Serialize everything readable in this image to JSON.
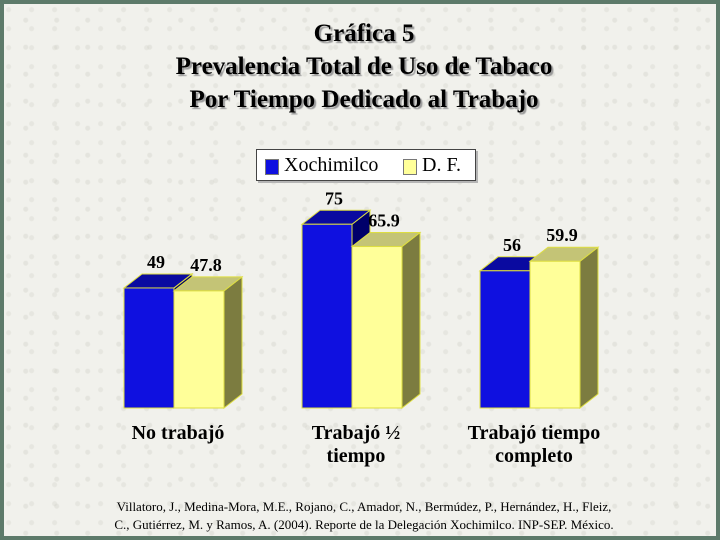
{
  "chart_data": {
    "type": "bar",
    "title": [
      "Gráfica 5",
      "Prevalencia Total de Uso de Tabaco",
      "Por Tiempo Dedicado al Trabajo"
    ],
    "categories": [
      [
        "No trabajó"
      ],
      [
        "Trabajó ½",
        "tiempo"
      ],
      [
        "Trabajó tiempo",
        "completo"
      ]
    ],
    "series": [
      {
        "name": "Xochimilco",
        "values": [
          49,
          75,
          56
        ],
        "labels": [
          "49",
          "75",
          "56"
        ],
        "color": "#0f10e0"
      },
      {
        "name": "D. F.",
        "values": [
          47.8,
          65.9,
          59.9
        ],
        "labels": [
          "47.8",
          "65.9",
          "59.9"
        ],
        "color": "#ffff99"
      }
    ],
    "ylim": [
      0,
      100
    ],
    "grid": false,
    "legend_position": "top-center"
  },
  "source": {
    "line1": "Villatoro, J., Medina-Mora, M.E., Rojano, C., Amador, N., Bermúdez, P., Hernández, H., Fleiz,",
    "line2": "C., Gutiérrez, M. y Ramos, A. (2004). Reporte de la Delegación Xochimilco. INP-SEP. México."
  },
  "colors": {
    "border": "#5d7a6a",
    "background": "#f1f1ec",
    "xochimilco": "#0f10e0",
    "df": "#ffff99"
  }
}
